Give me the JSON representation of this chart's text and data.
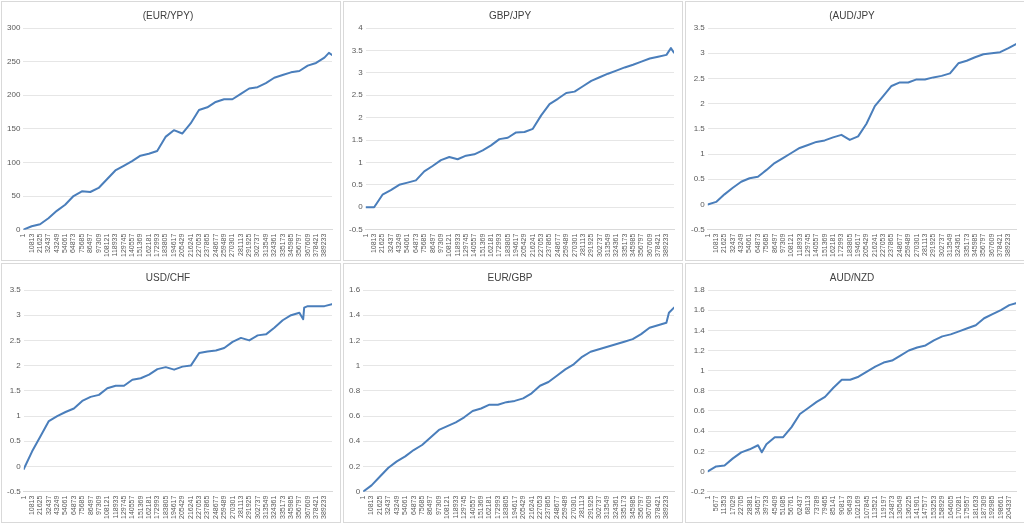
{
  "chart_data": [
    {
      "type": "line",
      "title": "(EUR/YPY)",
      "grid": "y",
      "marker": "none",
      "line_style": "solid",
      "xlim": [
        1,
        399000
      ],
      "ylim": [
        0,
        300
      ],
      "yticks": [
        0,
        50,
        100,
        150,
        200,
        250,
        300
      ],
      "xticks": [
        1,
        10813,
        21625,
        32437,
        43249,
        54061,
        64873,
        75685,
        86497,
        97309,
        108121,
        118933,
        129745,
        140557,
        151369,
        162181,
        172993,
        183805,
        194617,
        205429,
        216241,
        227053,
        237865,
        248677,
        259489,
        270301,
        281113,
        291925,
        302737,
        313549,
        324361,
        335173,
        345985,
        356797,
        367609,
        378421,
        389233
      ],
      "x": [
        1,
        10813,
        21625,
        32437,
        43249,
        54061,
        64873,
        75685,
        86497,
        97309,
        108121,
        118933,
        129745,
        140557,
        151369,
        162181,
        172993,
        183805,
        194617,
        205429,
        216241,
        227053,
        237865,
        248677,
        259489,
        270301,
        281113,
        291925,
        302737,
        313549,
        324361,
        335173,
        345985,
        356797,
        367609,
        378421,
        389233,
        395000,
        399000
      ],
      "series": [
        {
          "color": "#4a7ebb",
          "values": [
            0,
            5,
            8,
            17,
            28,
            37,
            50,
            57,
            56,
            62,
            75,
            88,
            95,
            102,
            110,
            113,
            117,
            138,
            148,
            143,
            158,
            178,
            182,
            190,
            194,
            194,
            202,
            210,
            212,
            218,
            226,
            230,
            234,
            236,
            244,
            248,
            256,
            263,
            260
          ]
        }
      ]
    },
    {
      "type": "line",
      "title": "GBP/JPY",
      "grid": "y",
      "marker": "none",
      "line_style": "solid",
      "xlim": [
        1,
        399000
      ],
      "ylim": [
        -0.5,
        4
      ],
      "yticks": [
        -0.5,
        0,
        0.5,
        1,
        1.5,
        2,
        2.5,
        3,
        3.5,
        4
      ],
      "xticks": [
        1,
        10813,
        21625,
        32437,
        43249,
        54061,
        64873,
        75685,
        86497,
        97309,
        108121,
        118933,
        129745,
        140557,
        151369,
        162181,
        172993,
        183805,
        194617,
        205429,
        216241,
        227053,
        237865,
        248677,
        259489,
        270301,
        281113,
        291925,
        302737,
        313549,
        324361,
        335173,
        345985,
        356797,
        367609,
        378421,
        389233
      ],
      "x": [
        1,
        10813,
        21625,
        32437,
        43249,
        54061,
        64873,
        75685,
        86497,
        97309,
        108121,
        118933,
        129745,
        140557,
        151369,
        162181,
        172993,
        183805,
        194617,
        205429,
        216241,
        227053,
        237865,
        248677,
        259489,
        270301,
        281113,
        291925,
        302737,
        313549,
        324361,
        335173,
        345985,
        356797,
        367609,
        378421,
        389233,
        395000,
        399000
      ],
      "series": [
        {
          "color": "#4a7ebb",
          "values": [
            0,
            0,
            0.28,
            0.38,
            0.5,
            0.55,
            0.6,
            0.8,
            0.92,
            1.05,
            1.12,
            1.07,
            1.15,
            1.18,
            1.27,
            1.38,
            1.52,
            1.55,
            1.67,
            1.68,
            1.75,
            2.05,
            2.3,
            2.42,
            2.55,
            2.58,
            2.7,
            2.82,
            2.9,
            2.98,
            3.05,
            3.12,
            3.18,
            3.25,
            3.32,
            3.36,
            3.4,
            3.55,
            3.45
          ]
        }
      ]
    },
    {
      "type": "line",
      "title": "(AUD/JPY",
      "grid": "y",
      "marker": "none",
      "line_style": "solid",
      "xlim": [
        1,
        399000
      ],
      "ylim": [
        -0.5,
        3.5
      ],
      "yticks": [
        -0.5,
        0,
        0.5,
        1,
        1.5,
        2,
        2.5,
        3,
        3.5
      ],
      "xticks": [
        1,
        10813,
        21625,
        32437,
        43249,
        54061,
        64873,
        75685,
        86497,
        97309,
        108121,
        118933,
        129745,
        140557,
        151369,
        162181,
        172993,
        183805,
        194617,
        205429,
        216241,
        227053,
        237865,
        248677,
        259489,
        270301,
        281113,
        291925,
        302737,
        313549,
        324361,
        335173,
        345985,
        356797,
        367609,
        378421,
        389233
      ],
      "x": [
        1,
        10813,
        21625,
        32437,
        43249,
        54061,
        64873,
        75685,
        86497,
        97309,
        108121,
        118933,
        129745,
        140557,
        151369,
        162181,
        172993,
        183805,
        194617,
        205429,
        216241,
        227053,
        237865,
        248677,
        259489,
        270301,
        281113,
        291925,
        302737,
        313549,
        324361,
        335173,
        345985,
        356797,
        367609,
        378421,
        389233,
        399000
      ],
      "series": [
        {
          "color": "#4a7ebb",
          "values": [
            0,
            0.05,
            0.2,
            0.33,
            0.45,
            0.52,
            0.55,
            0.68,
            0.82,
            0.92,
            1.02,
            1.12,
            1.18,
            1.24,
            1.27,
            1.33,
            1.38,
            1.28,
            1.35,
            1.6,
            1.95,
            2.15,
            2.35,
            2.42,
            2.42,
            2.48,
            2.48,
            2.52,
            2.55,
            2.6,
            2.8,
            2.85,
            2.92,
            2.98,
            3,
            3.02,
            3.1,
            3.18
          ]
        }
      ]
    },
    {
      "type": "line",
      "title": "USD/CHF",
      "grid": "y",
      "marker": "none",
      "line_style": "solid",
      "xlim": [
        1,
        399000
      ],
      "ylim": [
        -0.5,
        3.5
      ],
      "yticks": [
        -0.5,
        0,
        0.5,
        1,
        1.5,
        2,
        2.5,
        3,
        3.5
      ],
      "xticks": [
        1,
        10813,
        21625,
        32437,
        43249,
        54061,
        64873,
        75685,
        86497,
        97309,
        108121,
        118933,
        129745,
        140557,
        151369,
        162181,
        172993,
        183805,
        194617,
        205429,
        216241,
        227053,
        237865,
        248677,
        259489,
        270301,
        281113,
        291925,
        302737,
        313549,
        324361,
        335173,
        345985,
        356797,
        367609,
        378421,
        389233
      ],
      "x": [
        1,
        10813,
        21625,
        32437,
        43249,
        54061,
        64873,
        75685,
        86497,
        97309,
        108121,
        118933,
        129745,
        140557,
        151369,
        162181,
        172993,
        183805,
        194617,
        205429,
        216241,
        227053,
        237865,
        248677,
        259489,
        270301,
        281113,
        291925,
        302737,
        313549,
        324361,
        335173,
        345985,
        356797,
        361700,
        363000,
        367609,
        378421,
        389233,
        399000
      ],
      "series": [
        {
          "color": "#4a7ebb",
          "values": [
            -0.05,
            0.3,
            0.6,
            0.9,
            1,
            1.08,
            1.15,
            1.3,
            1.38,
            1.42,
            1.55,
            1.6,
            1.6,
            1.72,
            1.75,
            1.82,
            1.93,
            1.97,
            1.92,
            1.98,
            2,
            2.25,
            2.28,
            2.3,
            2.35,
            2.47,
            2.55,
            2.5,
            2.6,
            2.62,
            2.75,
            2.9,
            3,
            3.05,
            2.92,
            3.15,
            3.18,
            3.18,
            3.18,
            3.22
          ]
        }
      ]
    },
    {
      "type": "line",
      "title": "EUR/GBP",
      "grid": "y",
      "marker": "none",
      "line_style": "solid",
      "xlim": [
        1,
        399000
      ],
      "ylim": [
        0,
        1.6
      ],
      "yticks": [
        0,
        0.2,
        0.4,
        0.6,
        0.8,
        1,
        1.2,
        1.4,
        1.6
      ],
      "xticks": [
        1,
        10813,
        21625,
        32437,
        43249,
        54061,
        64873,
        75685,
        86497,
        97309,
        108121,
        118933,
        129745,
        140557,
        151369,
        162181,
        172993,
        183805,
        194617,
        205429,
        216241,
        227053,
        237865,
        248677,
        259489,
        270301,
        281113,
        291925,
        302737,
        313549,
        324361,
        335173,
        345985,
        356797,
        367609,
        378421,
        389233
      ],
      "x": [
        1,
        10813,
        21625,
        32437,
        43249,
        54061,
        64873,
        75685,
        86497,
        97309,
        108121,
        118933,
        129745,
        140557,
        151369,
        162181,
        172993,
        183805,
        194617,
        205429,
        216241,
        227053,
        237865,
        248677,
        259489,
        270301,
        281113,
        291925,
        302737,
        313549,
        324361,
        335173,
        345985,
        356797,
        367609,
        378421,
        389233,
        392500,
        399000
      ],
      "series": [
        {
          "color": "#4a7ebb",
          "values": [
            0,
            0.05,
            0.12,
            0.19,
            0.24,
            0.28,
            0.33,
            0.37,
            0.43,
            0.49,
            0.52,
            0.55,
            0.59,
            0.64,
            0.66,
            0.69,
            0.69,
            0.71,
            0.72,
            0.74,
            0.78,
            0.84,
            0.87,
            0.92,
            0.97,
            1.01,
            1.07,
            1.11,
            1.13,
            1.15,
            1.17,
            1.19,
            1.21,
            1.25,
            1.3,
            1.32,
            1.34,
            1.42,
            1.46
          ]
        }
      ]
    },
    {
      "type": "line",
      "title": "AUD/NZD",
      "grid": "y",
      "marker": "none",
      "line_style": "solid",
      "xlim": [
        1,
        208900
      ],
      "ylim": [
        -0.2,
        1.8
      ],
      "yticks": [
        -0.2,
        0,
        0.2,
        0.4,
        0.6,
        0.8,
        1,
        1.2,
        1.4,
        1.6,
        1.8
      ],
      "xticks": [
        1,
        5677,
        11353,
        17029,
        22705,
        28381,
        34057,
        39733,
        45409,
        51085,
        56761,
        62437,
        68113,
        73789,
        79465,
        85141,
        90817,
        96493,
        102169,
        107845,
        113521,
        119197,
        124873,
        130549,
        136225,
        141901,
        147577,
        153253,
        158929,
        164605,
        170281,
        175957,
        181633,
        187309,
        192985,
        198661,
        204337
      ],
      "x": [
        1,
        5677,
        11353,
        17029,
        22705,
        28381,
        34057,
        36600,
        39733,
        45409,
        51085,
        56761,
        62437,
        68113,
        73789,
        79465,
        85141,
        90817,
        96493,
        102169,
        107845,
        113521,
        119197,
        124873,
        130549,
        136225,
        141901,
        147577,
        153253,
        158929,
        164605,
        170281,
        175957,
        181633,
        187309,
        192985,
        198661,
        204337,
        208900
      ],
      "series": [
        {
          "color": "#4a7ebb",
          "values": [
            0,
            0.05,
            0.06,
            0.13,
            0.19,
            0.22,
            0.26,
            0.19,
            0.27,
            0.34,
            0.34,
            0.44,
            0.57,
            0.63,
            0.69,
            0.74,
            0.83,
            0.91,
            0.91,
            0.94,
            0.99,
            1.04,
            1.08,
            1.1,
            1.15,
            1.2,
            1.23,
            1.25,
            1.3,
            1.34,
            1.36,
            1.39,
            1.42,
            1.45,
            1.52,
            1.56,
            1.6,
            1.65,
            1.67
          ]
        }
      ]
    }
  ]
}
